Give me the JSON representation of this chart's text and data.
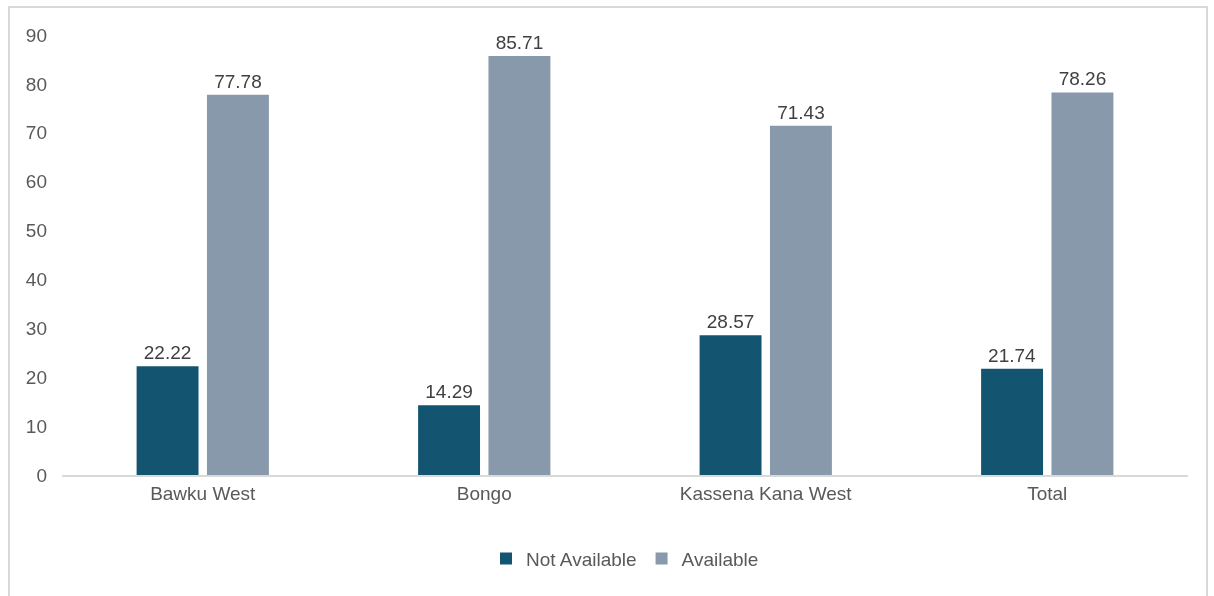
{
  "chart_data": {
    "type": "bar",
    "categories": [
      "Bawku West",
      "Bongo",
      "Kassena Kana West",
      "Total"
    ],
    "series": [
      {
        "name": "Not Available",
        "color": "#135470",
        "values": [
          22.22,
          14.29,
          28.57,
          21.74
        ]
      },
      {
        "name": "Available",
        "color": "#8799aa",
        "values": [
          77.78,
          85.71,
          71.43,
          78.26
        ]
      }
    ],
    "ylim": [
      0,
      90
    ],
    "yticks": [
      0,
      10,
      20,
      30,
      40,
      50,
      60,
      70,
      80,
      90
    ],
    "grid": false,
    "legend": "bottom",
    "data_labels": true
  }
}
